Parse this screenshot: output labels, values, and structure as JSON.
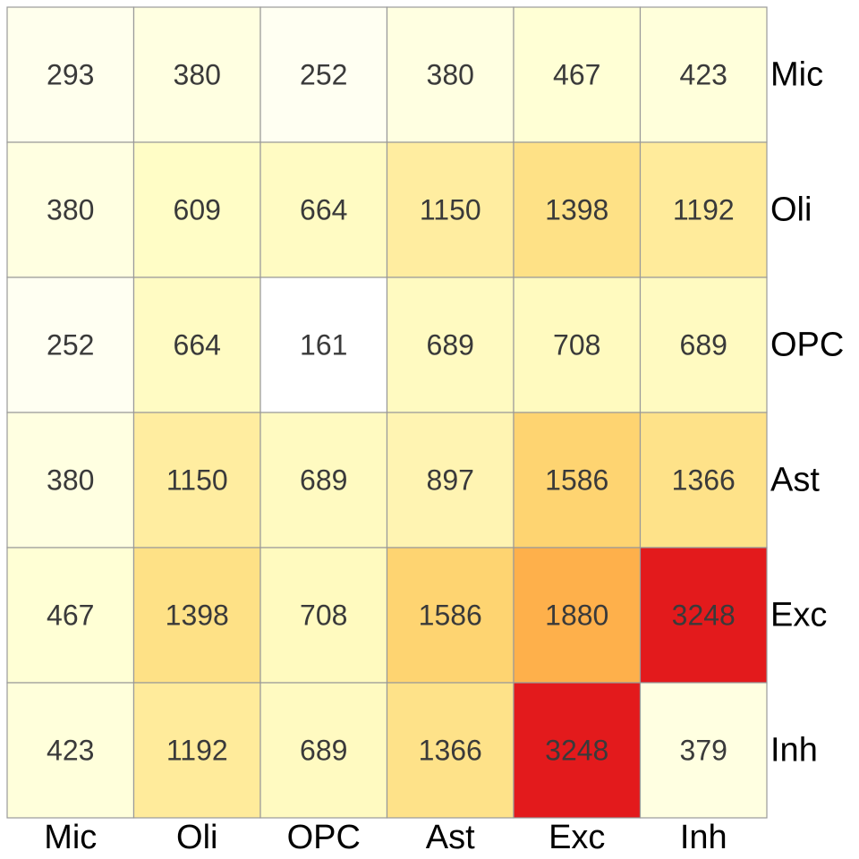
{
  "chart_data": {
    "type": "heatmap",
    "title": "",
    "xlabel": "",
    "ylabel": "",
    "x_categories": [
      "Mic",
      "Oli",
      "OPC",
      "Ast",
      "Exc",
      "Inh"
    ],
    "y_categories": [
      "Mic",
      "Oli",
      "OPC",
      "Ast",
      "Exc",
      "Inh"
    ],
    "y_axis_side": "right",
    "x_axis_side": "bottom",
    "values": [
      [
        293,
        380,
        252,
        380,
        467,
        423
      ],
      [
        380,
        609,
        664,
        1150,
        1398,
        1192
      ],
      [
        252,
        664,
        161,
        689,
        708,
        689
      ],
      [
        380,
        1150,
        689,
        897,
        1586,
        1366
      ],
      [
        467,
        1398,
        708,
        1586,
        1880,
        3248
      ],
      [
        423,
        1192,
        689,
        1366,
        3248,
        379
      ]
    ],
    "color_scale": [
      "#ffffff",
      "#ffffcc",
      "#ffeda0",
      "#fed976",
      "#feb24c",
      "#e31a1c"
    ],
    "cell_border_color": "#999999"
  }
}
